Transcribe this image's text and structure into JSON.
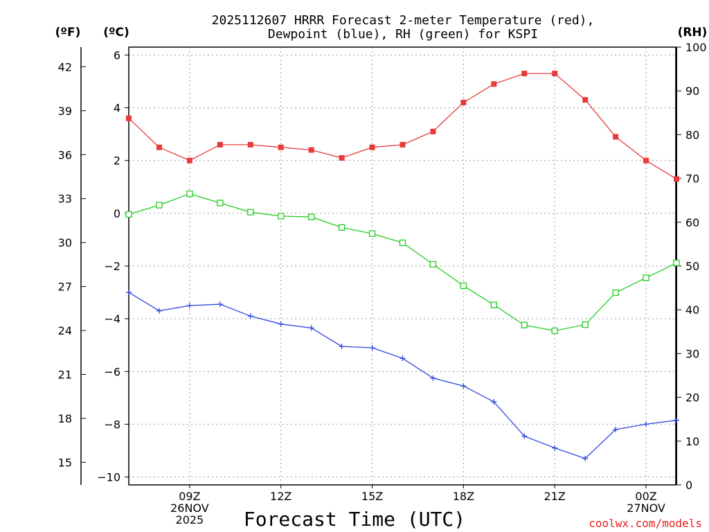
{
  "chart_data": {
    "type": "line",
    "title_line1": "2025112607 HRRR Forecast 2-meter Temperature (red),",
    "title_line2": "Dewpoint (blue), RH (green) for KSPI",
    "xlabel": "Forecast Time (UTC)",
    "credit": "coolwx.com/models",
    "unit_labels": {
      "fahrenheit": "(ºF)",
      "celsius": "(ºC)",
      "rh": "(RH)"
    },
    "x": [
      7,
      8,
      9,
      10,
      11,
      12,
      13,
      14,
      15,
      16,
      17,
      18,
      19,
      20,
      21,
      22,
      23,
      24,
      25
    ],
    "xlim": [
      7,
      25
    ],
    "x_ticks": [
      {
        "x": 9,
        "lines": [
          "09Z",
          "26NOV",
          "2025"
        ]
      },
      {
        "x": 12,
        "lines": [
          "12Z"
        ]
      },
      {
        "x": 15,
        "lines": [
          "15Z"
        ]
      },
      {
        "x": 18,
        "lines": [
          "18Z"
        ]
      },
      {
        "x": 21,
        "lines": [
          "21Z"
        ]
      },
      {
        "x": 24,
        "lines": [
          "00Z",
          "27NOV"
        ]
      }
    ],
    "celsius_axis": {
      "ylim": [
        -10.3,
        6.3
      ],
      "ticks": [
        6,
        4,
        2,
        0,
        -2,
        -4,
        -6,
        -8,
        -10
      ],
      "tick_labels": [
        "6",
        "4",
        "2",
        "0",
        "−2",
        "−4",
        "−6",
        "−8",
        "−10"
      ]
    },
    "fahrenheit_axis": {
      "ticks": [
        42,
        39,
        36,
        33,
        30,
        27,
        24,
        21,
        18,
        15
      ]
    },
    "rh_axis": {
      "ylim": [
        0,
        100
      ],
      "ticks": [
        100,
        90,
        80,
        70,
        60,
        50,
        40,
        30,
        20,
        10,
        0
      ]
    },
    "series": [
      {
        "name": "Temperature",
        "units": "C",
        "color": "#e83a3a",
        "marker": "filled-square",
        "values": [
          3.6,
          2.5,
          2.0,
          2.6,
          2.6,
          2.5,
          2.4,
          2.1,
          2.5,
          2.6,
          3.1,
          4.2,
          4.9,
          5.3,
          5.3,
          4.3,
          2.9,
          2.0,
          1.3
        ]
      },
      {
        "name": "Dewpoint",
        "units": "C",
        "color": "#2b44e0",
        "marker": "plus",
        "values": [
          -3.0,
          -3.7,
          -3.5,
          -3.45,
          -3.9,
          -4.2,
          -4.35,
          -5.05,
          -5.1,
          -5.5,
          -6.25,
          -6.55,
          -7.15,
          -8.45,
          -8.9,
          -9.3,
          -8.2,
          -8.0,
          -7.85
        ]
      },
      {
        "name": "RH",
        "units": "%",
        "color": "#22cc22",
        "marker": "open-square",
        "values": [
          61.8,
          63.9,
          66.5,
          64.4,
          62.3,
          61.4,
          61.2,
          58.8,
          57.4,
          55.3,
          50.4,
          45.5,
          41.1,
          36.5,
          35.2,
          36.6,
          43.9,
          47.3,
          50.7
        ]
      }
    ]
  }
}
